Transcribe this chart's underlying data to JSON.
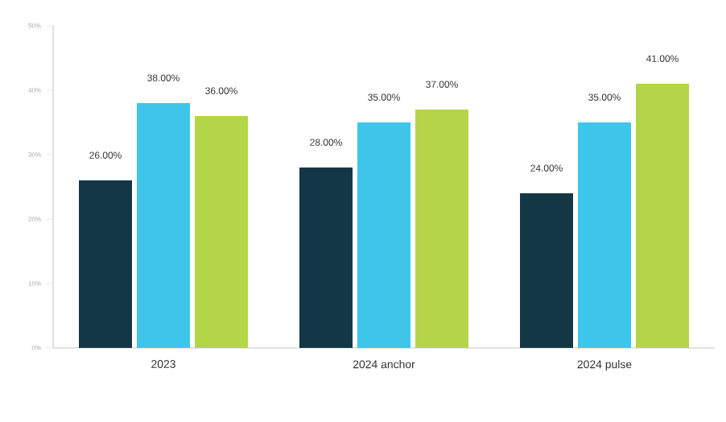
{
  "chart_data": {
    "type": "bar",
    "categories": [
      "2023",
      "2024 anchor",
      "2024 pulse"
    ],
    "series": [
      {
        "color": "#133745",
        "values": [
          26,
          28,
          24
        ],
        "value_labels": [
          "26.00%",
          "28.00%",
          "24.00%"
        ]
      },
      {
        "color": "#3ec6ea",
        "values": [
          38,
          35,
          35
        ],
        "value_labels": [
          "38.00%",
          "35.00%",
          "35.00%"
        ]
      },
      {
        "color": "#b5d549",
        "values": [
          36,
          37,
          41
        ],
        "value_labels": [
          "36.00%",
          "37.00%",
          "41.00%"
        ]
      }
    ],
    "ylim": [
      0,
      50
    ],
    "yticks": [
      {
        "value": 0,
        "label": "0%"
      },
      {
        "value": 10,
        "label": "10%"
      },
      {
        "value": 20,
        "label": "20%"
      },
      {
        "value": 30,
        "label": "30%"
      },
      {
        "value": 40,
        "label": "40%"
      },
      {
        "value": 50,
        "label": "50%"
      }
    ],
    "grid": false,
    "legend": false
  }
}
